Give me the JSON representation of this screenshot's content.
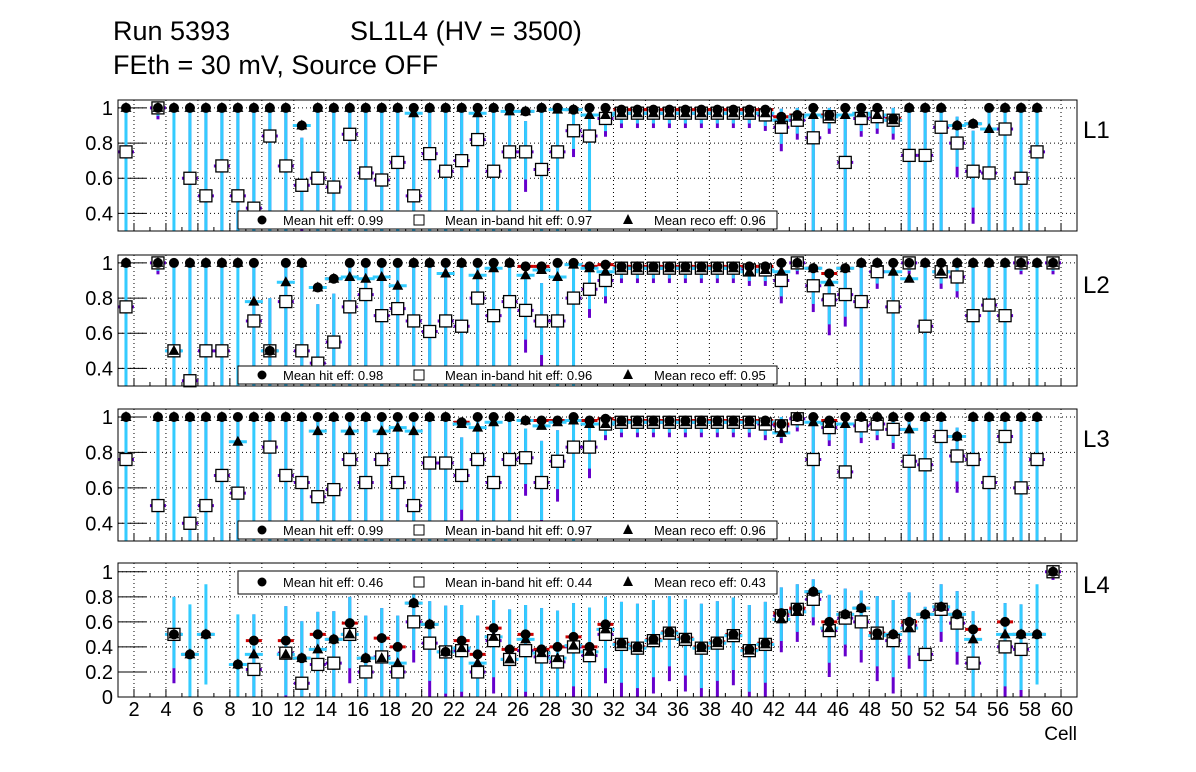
{
  "header": {
    "run": "Run 5393",
    "chamber": "SL1L4 (HV = 3500)",
    "conditions": "FEth = 30 mV, Source OFF"
  },
  "colors": {
    "hit_err": "#cc0000",
    "inband_err": "#6600cc",
    "reco_err": "#33ccff",
    "marker": "#000000"
  },
  "chart_data": [
    {
      "type": "scatter",
      "layer_label": "L1",
      "xlabel": "Cell",
      "ylabel": "",
      "xlim": [
        1,
        61
      ],
      "ylim": [
        0.3,
        1.045
      ],
      "yticks": [
        "0.4",
        "0.6",
        "0.8",
        "1"
      ],
      "ytick_values": [
        0.4,
        0.6,
        0.8,
        1.0
      ],
      "grid": true,
      "legend": [
        "Mean hit  eff: 0.99",
        "Mean in-band hit eff: 0.97",
        "Mean reco eff: 0.96"
      ],
      "legend_placement": "bottom",
      "x": [
        1,
        2,
        3,
        4,
        5,
        6,
        7,
        8,
        9,
        10,
        11,
        12,
        13,
        14,
        15,
        16,
        17,
        18,
        19,
        20,
        21,
        22,
        23,
        24,
        25,
        26,
        27,
        28,
        29,
        30,
        31,
        32,
        33,
        34,
        35,
        36,
        37,
        38,
        39,
        40,
        41,
        42,
        43,
        44,
        45,
        46,
        47,
        48,
        49,
        50,
        51,
        52,
        53,
        54,
        55,
        56,
        57,
        58,
        59,
        60
      ],
      "series": [
        {
          "name": "hit",
          "values": [
            1,
            null,
            1,
            1,
            1,
            1,
            1,
            1,
            1,
            1,
            1,
            0.9,
            1,
            1,
            1,
            1,
            1,
            1,
            1,
            1,
            1,
            1,
            1,
            1,
            1,
            0.98,
            1,
            1,
            0.99,
            1,
            1,
            0.99,
            0.99,
            0.99,
            0.99,
            0.99,
            0.99,
            0.99,
            0.99,
            0.99,
            0.99,
            0.95,
            0.96,
            1,
            0.96,
            1,
            1,
            1,
            0.94,
            1,
            1,
            1,
            0.9,
            0.91,
            1,
            1,
            1,
            1,
            null,
            null
          ]
        },
        {
          "name": "in-band",
          "values": [
            0.75,
            null,
            1,
            null,
            0.6,
            0.5,
            0.67,
            0.5,
            0.43,
            0.84,
            0.67,
            0.56,
            0.6,
            0.55,
            0.85,
            0.63,
            0.59,
            0.69,
            0.5,
            0.74,
            0.64,
            0.7,
            0.82,
            0.64,
            0.75,
            0.75,
            0.65,
            0.75,
            0.87,
            0.84,
            0.94,
            0.97,
            0.97,
            0.97,
            0.97,
            0.97,
            0.97,
            0.97,
            0.97,
            0.97,
            0.96,
            0.89,
            0.93,
            0.83,
            0.95,
            0.69,
            0.94,
            0.95,
            0.93,
            0.73,
            0.73,
            0.89,
            0.8,
            0.64,
            0.63,
            0.88,
            0.6,
            0.75,
            null,
            null
          ]
        },
        {
          "name": "reco",
          "values": [
            1,
            null,
            1,
            1,
            1,
            1,
            1,
            1,
            1,
            1,
            1,
            0.9,
            1,
            1,
            1,
            1,
            1,
            1,
            0.97,
            1,
            1,
            1,
            0.97,
            1,
            0.98,
            0.98,
            1,
            0.99,
            0.99,
            0.96,
            0.96,
            0.97,
            0.97,
            0.97,
            0.97,
            0.97,
            0.97,
            0.97,
            0.97,
            0.97,
            0.97,
            0.93,
            0.95,
            0.96,
            0.95,
            0.96,
            0.97,
            0.96,
            0.93,
            1,
            1,
            1,
            0.9,
            0.91,
            0.88,
            1,
            1,
            1,
            null,
            null
          ]
        }
      ]
    },
    {
      "type": "scatter",
      "layer_label": "L2",
      "xlabel": "Cell",
      "ylabel": "",
      "xlim": [
        1,
        61
      ],
      "ylim": [
        0.3,
        1.045
      ],
      "yticks": [
        "0.4",
        "0.6",
        "0.8",
        "1"
      ],
      "ytick_values": [
        0.4,
        0.6,
        0.8,
        1.0
      ],
      "grid": true,
      "legend": [
        "Mean hit  eff: 0.98",
        "Mean in-band hit eff: 0.96",
        "Mean reco eff: 0.95"
      ],
      "legend_placement": "bottom",
      "x": [
        1,
        2,
        3,
        4,
        5,
        6,
        7,
        8,
        9,
        10,
        11,
        12,
        13,
        14,
        15,
        16,
        17,
        18,
        19,
        20,
        21,
        22,
        23,
        24,
        25,
        26,
        27,
        28,
        29,
        30,
        31,
        32,
        33,
        34,
        35,
        36,
        37,
        38,
        39,
        40,
        41,
        42,
        43,
        44,
        45,
        46,
        47,
        48,
        49,
        50,
        51,
        52,
        53,
        54,
        55,
        56,
        57,
        58,
        59,
        60
      ],
      "series": [
        {
          "name": "hit",
          "values": [
            1,
            null,
            1,
            1,
            1,
            1,
            1,
            1,
            1,
            0.5,
            1,
            1,
            0.86,
            0.91,
            1,
            1,
            1,
            1,
            1,
            1,
            1,
            1,
            1,
            1,
            1,
            0.98,
            0.98,
            1,
            1,
            0.98,
            0.99,
            0.98,
            0.98,
            0.98,
            0.98,
            0.98,
            0.98,
            0.98,
            0.98,
            0.98,
            0.98,
            1,
            1,
            0.97,
            0.94,
            0.97,
            1,
            1,
            1,
            1,
            1,
            1,
            1,
            1,
            1,
            1,
            1,
            1,
            1,
            null
          ]
        },
        {
          "name": "in-band",
          "values": [
            0.75,
            null,
            1,
            0.5,
            0.33,
            0.5,
            0.5,
            null,
            0.67,
            0.5,
            0.78,
            0.5,
            0.43,
            0.55,
            0.75,
            0.82,
            0.7,
            0.74,
            0.67,
            0.61,
            0.67,
            0.64,
            0.8,
            0.7,
            0.78,
            0.73,
            0.67,
            0.67,
            0.8,
            0.85,
            0.9,
            0.97,
            0.97,
            0.97,
            0.97,
            0.97,
            0.97,
            0.97,
            0.97,
            0.96,
            0.96,
            0.9,
            1,
            0.87,
            0.79,
            0.82,
            0.78,
            0.95,
            0.75,
            1,
            0.64,
            0.95,
            0.92,
            0.7,
            0.76,
            0.7,
            1,
            null,
            1,
            null
          ]
        },
        {
          "name": "reco",
          "values": [
            1,
            null,
            1,
            0.5,
            1,
            1,
            1,
            1,
            0.78,
            0.5,
            0.89,
            1,
            0.86,
            0.91,
            0.92,
            0.91,
            0.92,
            0.87,
            1,
            1,
            0.94,
            1,
            0.93,
            0.97,
            1,
            0.93,
            0.96,
            0.92,
            0.99,
            0.97,
            0.95,
            0.97,
            0.97,
            0.97,
            0.97,
            0.97,
            0.97,
            0.97,
            0.97,
            0.95,
            0.96,
            0.95,
            1,
            0.97,
            0.89,
            0.97,
            1,
            1,
            0.95,
            0.91,
            1,
            0.95,
            1,
            1,
            1,
            1,
            1,
            1,
            1,
            null
          ]
        }
      ]
    },
    {
      "type": "scatter",
      "layer_label": "L3",
      "xlabel": "Cell",
      "ylabel": "",
      "xlim": [
        1,
        61
      ],
      "ylim": [
        0.3,
        1.045
      ],
      "yticks": [
        "0.4",
        "0.6",
        "0.8",
        "1"
      ],
      "ytick_values": [
        0.4,
        0.6,
        0.8,
        1.0
      ],
      "grid": true,
      "legend": [
        "Mean hit  eff: 0.99",
        "Mean in-band hit eff: 0.97",
        "Mean reco eff: 0.96"
      ],
      "legend_placement": "bottom",
      "x": [
        1,
        2,
        3,
        4,
        5,
        6,
        7,
        8,
        9,
        10,
        11,
        12,
        13,
        14,
        15,
        16,
        17,
        18,
        19,
        20,
        21,
        22,
        23,
        24,
        25,
        26,
        27,
        28,
        29,
        30,
        31,
        32,
        33,
        34,
        35,
        36,
        37,
        38,
        39,
        40,
        41,
        42,
        43,
        44,
        45,
        46,
        47,
        48,
        49,
        50,
        51,
        52,
        53,
        54,
        55,
        56,
        57,
        58,
        59,
        60
      ],
      "series": [
        {
          "name": "hit",
          "values": [
            1,
            null,
            1,
            1,
            1,
            1,
            1,
            1,
            1,
            1,
            1,
            1,
            1,
            1,
            1,
            1,
            1,
            1,
            1,
            1,
            1,
            0.97,
            1,
            1,
            1,
            0.98,
            0.98,
            0.98,
            1,
            0.98,
            0.99,
            0.98,
            0.98,
            0.98,
            0.98,
            0.98,
            0.98,
            0.98,
            0.98,
            0.98,
            0.98,
            0.96,
            1,
            1,
            0.98,
            1,
            1,
            1,
            1,
            1,
            1,
            1,
            0.89,
            1,
            1,
            1,
            1,
            1,
            null,
            null
          ]
        },
        {
          "name": "in-band",
          "values": [
            0.76,
            null,
            0.5,
            null,
            0.4,
            0.5,
            0.67,
            0.57,
            null,
            0.83,
            0.67,
            0.63,
            0.55,
            0.59,
            0.76,
            0.63,
            0.76,
            0.63,
            0.5,
            0.74,
            0.74,
            0.67,
            0.76,
            0.63,
            0.76,
            0.77,
            0.63,
            0.75,
            0.83,
            0.83,
            0.96,
            0.97,
            0.97,
            0.97,
            0.97,
            0.97,
            0.97,
            0.97,
            0.97,
            0.97,
            0.96,
            0.95,
            0.99,
            0.76,
            0.94,
            0.69,
            0.95,
            0.96,
            0.93,
            0.75,
            0.73,
            0.89,
            0.78,
            0.76,
            0.63,
            0.89,
            0.6,
            0.76,
            null,
            null
          ]
        },
        {
          "name": "reco",
          "values": [
            1,
            null,
            1,
            1,
            1,
            1,
            1,
            0.86,
            1,
            1,
            1,
            1,
            0.92,
            1,
            0.92,
            1,
            0.92,
            0.94,
            0.92,
            1,
            1,
            0.96,
            0.94,
            0.97,
            1,
            0.98,
            0.95,
            0.97,
            0.98,
            0.96,
            0.96,
            0.97,
            0.97,
            0.97,
            0.97,
            0.97,
            0.97,
            0.97,
            0.97,
            0.97,
            0.97,
            0.91,
            1,
            0.97,
            0.96,
            0.96,
            1,
            1,
            1,
            0.93,
            1,
            1,
            0.89,
            1,
            1,
            1,
            1,
            1,
            null,
            null
          ]
        }
      ]
    },
    {
      "type": "scatter",
      "layer_label": "L4",
      "xlabel": "Cell",
      "ylabel": "",
      "xlim": [
        1,
        61
      ],
      "ylim": [
        0,
        1.07
      ],
      "yticks": [
        "0",
        "0.2",
        "0.4",
        "0.6",
        "0.8",
        "1"
      ],
      "ytick_values": [
        0,
        0.2,
        0.4,
        0.6,
        0.8,
        1.0
      ],
      "xticks": [
        "2",
        "4",
        "6",
        "8",
        "10",
        "12",
        "14",
        "16",
        "18",
        "20",
        "22",
        "24",
        "26",
        "28",
        "30",
        "32",
        "34",
        "36",
        "38",
        "40",
        "42",
        "44",
        "46",
        "48",
        "50",
        "52",
        "54",
        "56",
        "58",
        "60"
      ],
      "grid": true,
      "legend": [
        "Mean hit  eff: 0.46",
        "Mean in-band hit eff: 0.44",
        "Mean reco eff: 0.43"
      ],
      "legend_placement": "top",
      "x": [
        1,
        2,
        3,
        4,
        5,
        6,
        7,
        8,
        9,
        10,
        11,
        12,
        13,
        14,
        15,
        16,
        17,
        18,
        19,
        20,
        21,
        22,
        23,
        24,
        25,
        26,
        27,
        28,
        29,
        30,
        31,
        32,
        33,
        34,
        35,
        36,
        37,
        38,
        39,
        40,
        41,
        42,
        43,
        44,
        45,
        46,
        47,
        48,
        49,
        50,
        51,
        52,
        53,
        54,
        55,
        56,
        57,
        58,
        59,
        60
      ],
      "series": [
        {
          "name": "hit",
          "values": [
            null,
            null,
            null,
            0.5,
            0.34,
            0.5,
            null,
            0.26,
            0.45,
            null,
            0.45,
            0.31,
            0.5,
            0.46,
            0.59,
            0.31,
            0.47,
            0.4,
            0.75,
            0.58,
            0.36,
            0.45,
            0.34,
            0.55,
            0.38,
            0.5,
            0.38,
            0.4,
            0.48,
            0.4,
            0.58,
            0.43,
            0.4,
            0.46,
            0.52,
            0.47,
            0.4,
            0.44,
            0.5,
            0.38,
            0.43,
            0.67,
            0.71,
            0.84,
            0.6,
            0.66,
            0.71,
            0.51,
            0.5,
            0.6,
            0.66,
            0.72,
            0.66,
            0.54,
            null,
            0.6,
            0.5,
            0.5,
            1,
            null
          ]
        },
        {
          "name": "in-band",
          "values": [
            null,
            null,
            null,
            0.5,
            null,
            null,
            null,
            null,
            0.22,
            null,
            0.35,
            0.11,
            0.26,
            0.27,
            0.5,
            0.2,
            0.32,
            0.2,
            0.6,
            0.43,
            0.36,
            0.37,
            0.2,
            0.45,
            0.3,
            0.37,
            0.32,
            0.28,
            0.4,
            0.33,
            0.5,
            0.42,
            0.39,
            0.45,
            0.51,
            0.46,
            0.39,
            0.43,
            0.49,
            0.37,
            0.42,
            0.65,
            0.7,
            0.78,
            0.53,
            0.63,
            0.6,
            0.51,
            0.45,
            0.57,
            0.34,
            0.7,
            0.59,
            0.27,
            null,
            0.4,
            0.38,
            null,
            1,
            null
          ]
        },
        {
          "name": "reco",
          "values": [
            null,
            null,
            null,
            0.5,
            0.34,
            0.5,
            null,
            0.26,
            0.34,
            null,
            0.34,
            0.31,
            0.38,
            0.46,
            0.5,
            0.31,
            0.31,
            0.27,
            0.75,
            0.58,
            0.36,
            0.39,
            0.27,
            0.48,
            0.3,
            0.46,
            0.35,
            0.31,
            0.41,
            0.36,
            0.54,
            0.42,
            0.39,
            0.45,
            0.51,
            0.46,
            0.39,
            0.43,
            0.49,
            0.37,
            0.42,
            0.62,
            0.68,
            0.84,
            0.55,
            0.66,
            0.71,
            0.49,
            0.5,
            0.55,
            0.66,
            0.72,
            0.66,
            0.46,
            null,
            0.5,
            0.5,
            0.5,
            1,
            null
          ]
        }
      ]
    }
  ]
}
